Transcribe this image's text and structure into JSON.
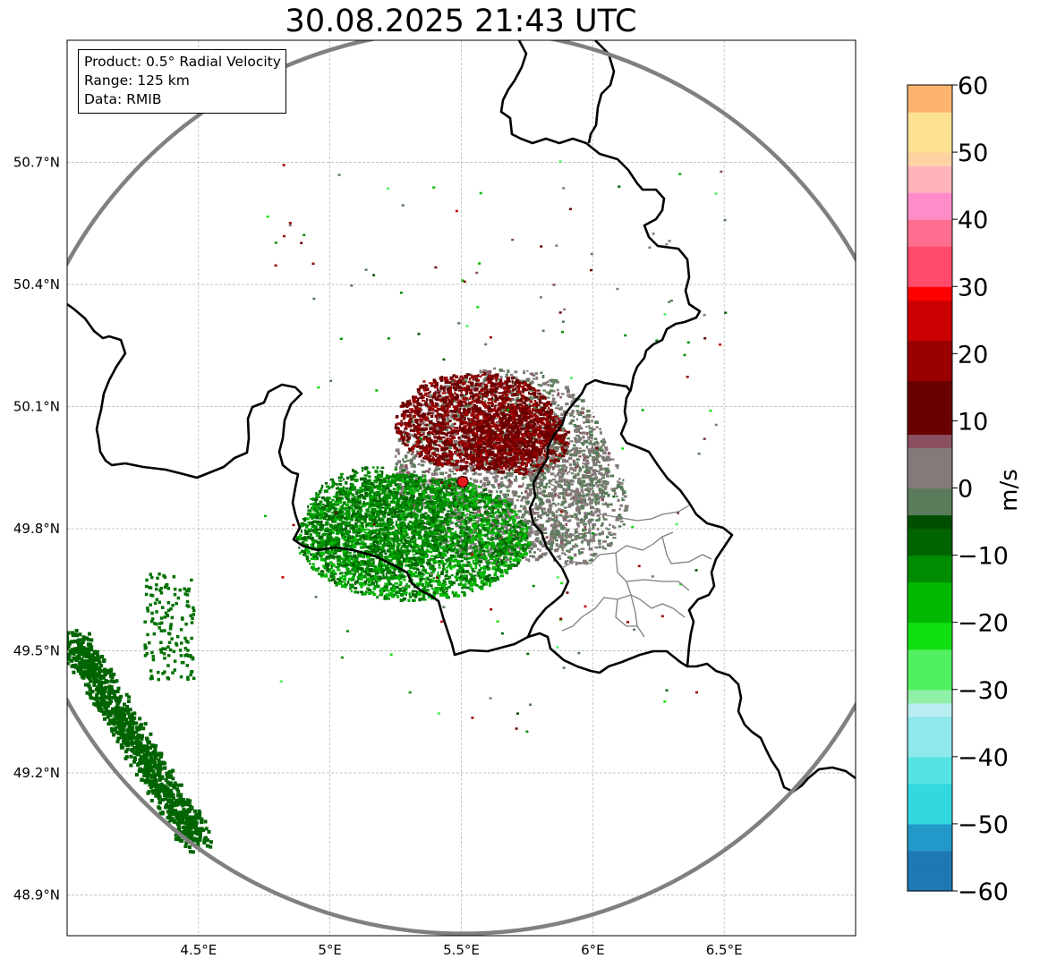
{
  "title": "30.08.2025 21:43 UTC",
  "info": {
    "product": "Product: 0.5° Radial Velocity",
    "range": "Range: 125 km",
    "data": "Data: RMIB"
  },
  "map": {
    "lon_range": [
      4.0,
      7.0
    ],
    "lat_range": [
      48.8,
      51.0
    ],
    "lon_ticks": [
      {
        "v": 4.5,
        "label": "4.5°E"
      },
      {
        "v": 5.0,
        "label": "5°E"
      },
      {
        "v": 5.5,
        "label": "5.5°E"
      },
      {
        "v": 6.0,
        "label": "6°E"
      },
      {
        "v": 6.5,
        "label": "6.5°E"
      }
    ],
    "lat_ticks": [
      {
        "v": 48.9,
        "label": "48.9°N"
      },
      {
        "v": 49.2,
        "label": "49.2°N"
      },
      {
        "v": 49.5,
        "label": "49.5°N"
      },
      {
        "v": 49.8,
        "label": "49.8°N"
      },
      {
        "v": 50.1,
        "label": "50.1°N"
      },
      {
        "v": 50.4,
        "label": "50.4°N"
      },
      {
        "v": 50.7,
        "label": "50.7°N"
      }
    ],
    "radar_site": {
      "lon": 5.505,
      "lat": 49.915
    },
    "range_ring_color": "#808080",
    "radar_marker_color": "#e41a1c"
  },
  "colorbar": {
    "label": "m/s",
    "min": -60,
    "max": 60,
    "ticks": [
      {
        "v": 60,
        "label": "60"
      },
      {
        "v": 50,
        "label": "50"
      },
      {
        "v": 40,
        "label": "40"
      },
      {
        "v": 30,
        "label": "30"
      },
      {
        "v": 20,
        "label": "20"
      },
      {
        "v": 10,
        "label": "10"
      },
      {
        "v": 0,
        "label": "0"
      },
      {
        "v": -10,
        "label": "−10"
      },
      {
        "v": -20,
        "label": "−20"
      },
      {
        "v": -30,
        "label": "−30"
      },
      {
        "v": -40,
        "label": "−40"
      },
      {
        "v": -50,
        "label": "−50"
      },
      {
        "v": -60,
        "label": "−60"
      }
    ],
    "stops": [
      {
        "v": -60,
        "color": "#1f77b4"
      },
      {
        "v": -55,
        "color": "#2299c8"
      },
      {
        "v": -50,
        "color": "#33d8df"
      },
      {
        "v": -45,
        "color": "#55e3e3"
      },
      {
        "v": -40,
        "color": "#8ee8ec"
      },
      {
        "v": -35,
        "color": "#b8eef2"
      },
      {
        "v": -32,
        "color": "#90f0a8"
      },
      {
        "v": -30,
        "color": "#50f060"
      },
      {
        "v": -25,
        "color": "#10e010"
      },
      {
        "v": -20,
        "color": "#00b800"
      },
      {
        "v": -15,
        "color": "#008c00"
      },
      {
        "v": -10,
        "color": "#006400"
      },
      {
        "v": -6,
        "color": "#004f00"
      },
      {
        "v": -5,
        "color": "#5a7c5a"
      },
      {
        "v": 0,
        "color": "#857a7a"
      },
      {
        "v": 5,
        "color": "#8a5060"
      },
      {
        "v": 7,
        "color": "#7a3a40"
      },
      {
        "v": 8,
        "color": "#6a0000"
      },
      {
        "v": 15,
        "color": "#9a0000"
      },
      {
        "v": 22,
        "color": "#cc0000"
      },
      {
        "v": 28,
        "color": "#ff0000"
      },
      {
        "v": 30,
        "color": "#ff4a6a"
      },
      {
        "v": 35,
        "color": "#ff6e8e"
      },
      {
        "v": 40,
        "color": "#ff8cc8"
      },
      {
        "v": 44,
        "color": "#ffb4bc"
      },
      {
        "v": 47,
        "color": "#ffd2a4"
      },
      {
        "v": 50,
        "color": "#ffe194"
      },
      {
        "v": 55,
        "color": "#ffb46e"
      },
      {
        "v": 60,
        "color": "#ff9d52"
      }
    ]
  }
}
